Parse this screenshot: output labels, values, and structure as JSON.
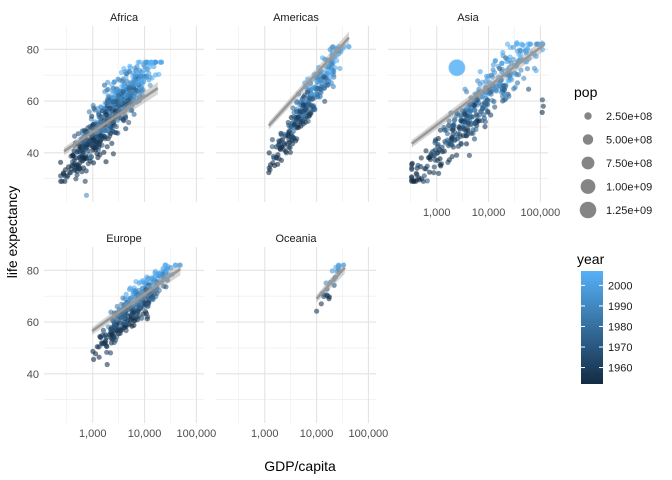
{
  "chart_data": {
    "type": "scatter",
    "facet_by": "continent",
    "facets": [
      "Africa",
      "Americas",
      "Asia",
      "Europe",
      "Oceania"
    ],
    "x_scale": "log10",
    "xlabel": "GDP/capita",
    "ylabel": "life expectancy",
    "x_ticks": [
      1000,
      10000,
      100000
    ],
    "x_tick_labels": [
      "1,000",
      "10,000",
      "100,000"
    ],
    "y_ticks": [
      40,
      60,
      80
    ],
    "y_tick_labels": [
      "40",
      "60",
      "80"
    ],
    "xlim": [
      115,
      140000
    ],
    "ylim": [
      21,
      89
    ],
    "grid": true,
    "point_alpha": 0.6,
    "smooth": {
      "method": "lm",
      "line_color": "#999999",
      "band_color": "#999999"
    },
    "trend_lines": [
      {
        "facet": "Africa",
        "x": [
          280,
          18000
        ],
        "y": [
          40.6,
          65.0
        ]
      },
      {
        "facet": "Americas",
        "x": [
          1200,
          42000
        ],
        "y": [
          50.5,
          84.5
        ]
      },
      {
        "facet": "Asia",
        "x": [
          330,
          113000
        ],
        "y": [
          43.5,
          81.5
        ]
      },
      {
        "facet": "Europe",
        "x": [
          970,
          49000
        ],
        "y": [
          56.5,
          80.5
        ]
      },
      {
        "facet": "Oceania",
        "x": [
          10000,
          35000
        ],
        "y": [
          69.0,
          81.0
        ]
      }
    ],
    "point_clouds": [
      {
        "facet": "Africa",
        "n": 620,
        "x_min": 240,
        "x_max": 21000,
        "y_at_min": 36,
        "y_at_max": 74,
        "spread": 7.5,
        "year_slope": 0.22
      },
      {
        "facet": "Americas",
        "n": 300,
        "x_min": 1200,
        "x_max": 42000,
        "y_at_min": 40,
        "y_at_max": 80,
        "spread": 5.5,
        "year_slope": 0.28
      },
      {
        "facet": "Asia",
        "n": 396,
        "x_min": 330,
        "x_max": 110000,
        "y_at_min": 35,
        "y_at_max": 81,
        "spread": 7.0,
        "year_slope": 0.3
      },
      {
        "facet": "Europe",
        "n": 360,
        "x_min": 970,
        "x_max": 49000,
        "y_at_min": 53,
        "y_at_max": 81,
        "spread": 3.5,
        "year_slope": 0.16
      },
      {
        "facet": "Oceania",
        "n": 24,
        "x_min": 10000,
        "x_max": 35000,
        "y_at_min": 69,
        "y_at_max": 81,
        "spread": 0.8,
        "year_slope": 0.18
      }
    ],
    "outliers": [
      {
        "facet": "Africa",
        "x": 760,
        "y": 23.6,
        "year": 1992,
        "pop": 7000000
      },
      {
        "facet": "Europe",
        "x": 1900,
        "y": 43.6,
        "year": 1957,
        "pop": 22000000
      },
      {
        "facet": "Europe",
        "x": 2200,
        "y": 48.1,
        "year": 1962,
        "pop": 28000000
      },
      {
        "facet": "Europe",
        "x": 2600,
        "y": 52.1,
        "year": 1967,
        "pop": 33000000
      },
      {
        "facet": "Europe",
        "x": 2900,
        "y": 54.3,
        "year": 1972,
        "pop": 37000000
      },
      {
        "facet": "Asia",
        "x": 113523,
        "y": 58.0,
        "year": 1957,
        "pop": 200000
      },
      {
        "facet": "Asia",
        "x": 108382,
        "y": 55.6,
        "year": 1952,
        "pop": 160000
      },
      {
        "facet": "Asia",
        "x": 109347,
        "y": 60.5,
        "year": 1962,
        "pop": 300000
      },
      {
        "facet": "Asia",
        "x": 59265,
        "y": 64.6,
        "year": 1967,
        "pop": 500000
      },
      {
        "facet": "Asia",
        "x": 35110,
        "y": 82.6,
        "year": 2007,
        "pop": 127000000
      },
      {
        "facet": "Asia",
        "x": 2452,
        "y": 72.9,
        "year": 2007,
        "pop": 1318683096
      },
      {
        "facet": "Asia",
        "x": 2452,
        "y": 72.9,
        "year": 2007,
        "pop": 1110396331
      }
    ],
    "pop_legend": {
      "title": "pop",
      "breaks": [
        250000000,
        500000000,
        750000000,
        1000000000,
        1250000000
      ],
      "labels": [
        "2.50e+08",
        "5.00e+08",
        "7.50e+08",
        "1.00e+09",
        "1.25e+09"
      ],
      "max_radius_pop": 1318683096
    },
    "year_legend": {
      "title": "year",
      "range": [
        1952,
        2007
      ],
      "breaks": [
        1960,
        1970,
        1980,
        1990,
        2000
      ],
      "labels": [
        "1960",
        "1970",
        "1980",
        "1990",
        "2000"
      ],
      "color_low": "#132B43",
      "color_high": "#56B1F7"
    }
  }
}
